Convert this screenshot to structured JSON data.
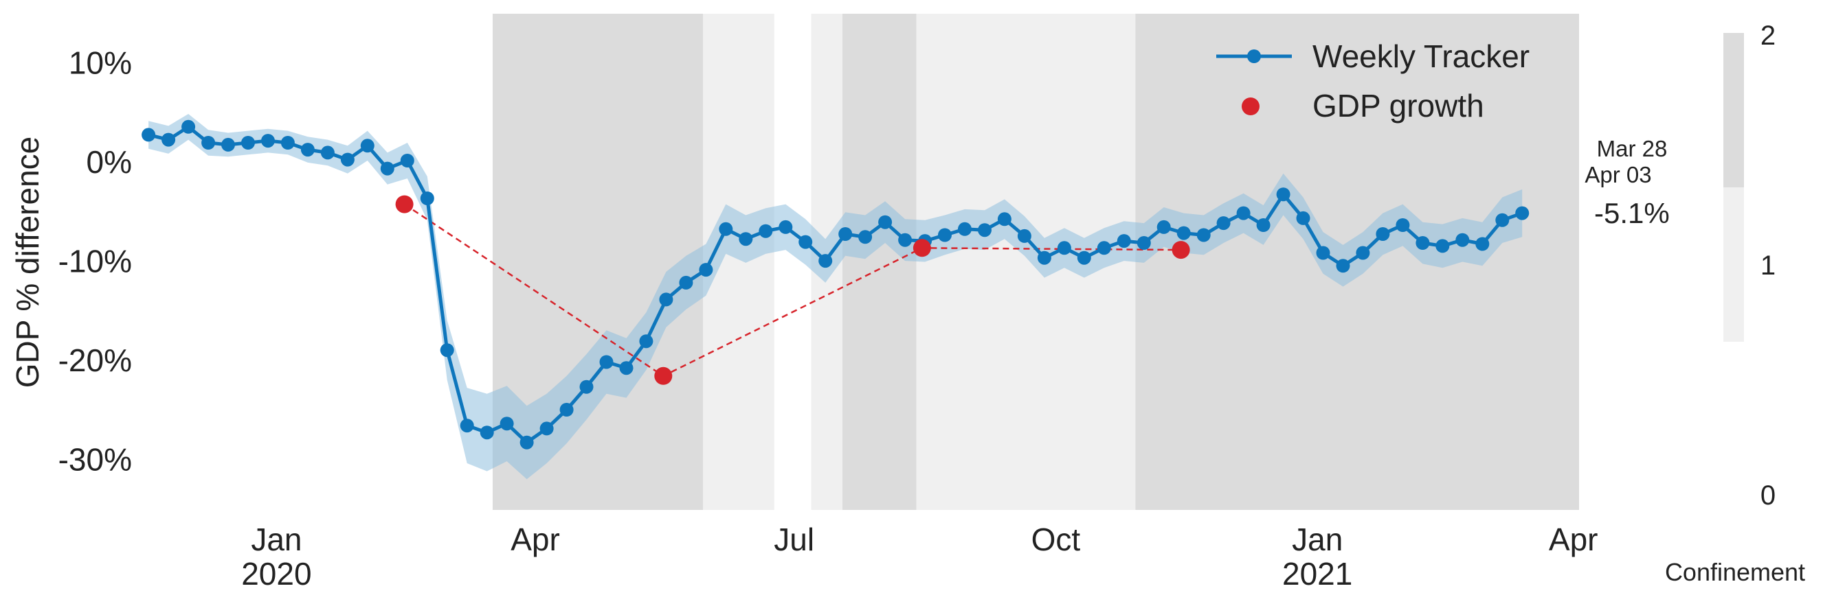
{
  "chart_data": {
    "type": "line",
    "ylabel": "GDP % difference",
    "y_ticks": [
      10,
      0,
      -10,
      -20,
      -30
    ],
    "y_tick_labels": [
      "10%",
      "0%",
      "-10%",
      "-20%",
      "-30%"
    ],
    "ylim": [
      -35,
      15
    ],
    "xlim": [
      "2019-11-16",
      "2021-04-03"
    ],
    "x_ticks": [
      {
        "date": "2020-01-01",
        "label": "Jan",
        "sub": "2020"
      },
      {
        "date": "2020-04-01",
        "label": "Apr",
        "sub": ""
      },
      {
        "date": "2020-07-01",
        "label": "Jul",
        "sub": ""
      },
      {
        "date": "2020-10-01",
        "label": "Oct",
        "sub": ""
      },
      {
        "date": "2021-01-01",
        "label": "Jan",
        "sub": "2021"
      },
      {
        "date": "2021-04-01",
        "label": "Apr",
        "sub": ""
      }
    ],
    "grid": false,
    "legend_position": "top-right",
    "series": [
      {
        "name": "Weekly Tracker",
        "color": "#0e76bc",
        "band_color": "#8fbfdf",
        "start_date": "2019-11-17",
        "interval_days": 7,
        "values": [
          2.8,
          2.3,
          3.6,
          2.0,
          1.8,
          2.0,
          2.2,
          2.0,
          1.3,
          1.0,
          0.3,
          1.7,
          -0.6,
          0.2,
          -3.6,
          -18.9,
          -26.5,
          -27.2,
          -26.3,
          -28.2,
          -26.8,
          -24.9,
          -22.6,
          -20.1,
          -20.7,
          -18.0,
          -13.8,
          -12.1,
          -10.8,
          -6.7,
          -7.7,
          -6.9,
          -6.5,
          -8.0,
          -9.9,
          -7.2,
          -7.5,
          -6.0,
          -7.8,
          -7.9,
          -7.3,
          -6.7,
          -6.8,
          -5.7,
          -7.4,
          -9.6,
          -8.6,
          -9.6,
          -8.6,
          -7.9,
          -8.1,
          -6.5,
          -7.1,
          -7.3,
          -6.1,
          -5.1,
          -6.3,
          -3.2,
          -5.6,
          -9.1,
          -10.4,
          -9.1,
          -7.2,
          -6.3,
          -8.1,
          -8.4,
          -7.8,
          -8.2,
          -5.8,
          -5.1
        ],
        "band_halfwidth": [
          1.4,
          1.4,
          1.3,
          1.3,
          1.2,
          1.2,
          1.2,
          1.2,
          1.3,
          1.3,
          1.4,
          1.5,
          1.6,
          1.8,
          2.2,
          3.0,
          3.8,
          3.9,
          3.8,
          3.7,
          3.5,
          3.4,
          3.3,
          3.2,
          3.0,
          2.9,
          2.8,
          2.7,
          2.6,
          2.5,
          2.4,
          2.3,
          2.3,
          2.3,
          2.2,
          2.2,
          2.2,
          2.1,
          2.1,
          2.1,
          2.0,
          2.0,
          2.0,
          2.0,
          2.0,
          2.0,
          2.0,
          2.0,
          2.0,
          2.0,
          2.0,
          2.0,
          2.0,
          2.0,
          2.0,
          2.0,
          2.0,
          2.1,
          2.1,
          2.1,
          2.1,
          2.1,
          2.1,
          2.1,
          2.1,
          2.2,
          2.2,
          2.2,
          2.3,
          2.4
        ]
      },
      {
        "name": "GDP growth",
        "color": "#d7242b",
        "points": [
          {
            "date": "2020-02-15",
            "value": -4.2
          },
          {
            "date": "2020-05-16",
            "value": -21.5
          },
          {
            "date": "2020-08-15",
            "value": -8.6
          },
          {
            "date": "2020-11-14",
            "value": -8.8
          }
        ]
      }
    ],
    "confinement": {
      "label": "Confinement",
      "scale_ticks": [
        2,
        1,
        0
      ],
      "periods": [
        {
          "start": "2020-03-17",
          "end": "2020-05-30",
          "level": 2
        },
        {
          "start": "2020-05-30",
          "end": "2020-06-24",
          "level": 1
        },
        {
          "start": "2020-07-07",
          "end": "2020-07-18",
          "level": 1
        },
        {
          "start": "2020-07-18",
          "end": "2020-08-13",
          "level": 2
        },
        {
          "start": "2020-08-13",
          "end": "2020-10-29",
          "level": 1
        },
        {
          "start": "2020-10-29",
          "end": "2021-04-03",
          "level": 2
        }
      ],
      "colors": {
        "level1": "#f0f0f0",
        "level2": "#dcdcdc"
      }
    },
    "annotations": {
      "latest_value": "-5.1%",
      "latest_color": "#0e76bc",
      "date_line1": "Mar 28",
      "date_line2": "Apr 03"
    }
  }
}
